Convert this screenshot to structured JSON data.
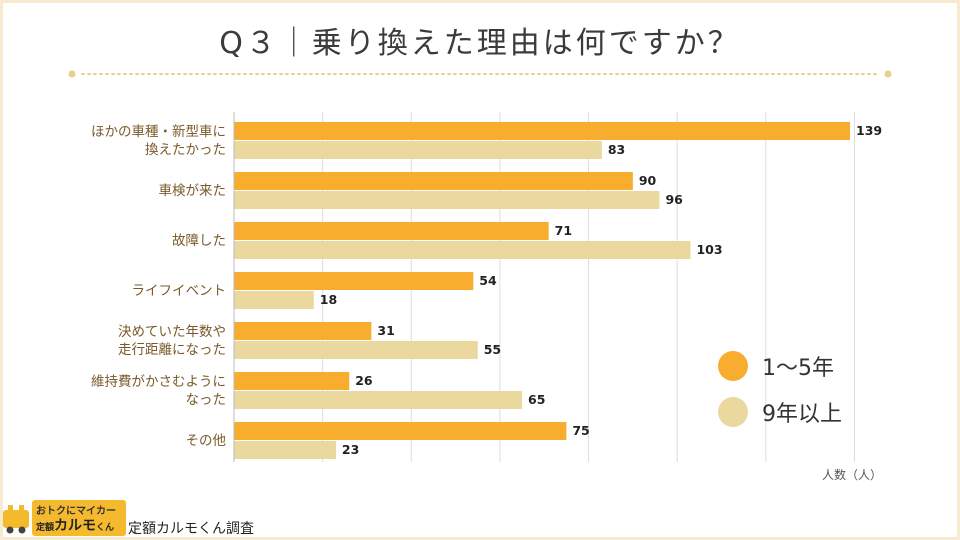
{
  "title": "Q３｜乗り換えた理由は何ですか？",
  "unit_label": "人数（人）",
  "legend": [
    {
      "label": "1～5年",
      "color": "#f9ad2e"
    },
    {
      "label": "9年以上",
      "color": "#ead89e"
    }
  ],
  "source": "定額カルモくん調査",
  "logo": {
    "top": "おトクにマイカー",
    "prefix": "定額",
    "main": "カルモ",
    "suffix": "くん"
  },
  "colors": {
    "series1": "#f9ad2e",
    "series2": "#ead89e",
    "label": "#7a5a2a",
    "grid": "#dddddd"
  },
  "chart_data": {
    "type": "bar",
    "orientation": "horizontal",
    "title": "Q３｜乗り換えた理由は何ですか？",
    "xlabel": "人数（人）",
    "ylabel": "",
    "xlim": [
      0,
      140
    ],
    "grid": true,
    "categories": [
      [
        "ほかの車種・新型車に",
        "換えたかった"
      ],
      [
        "車検が来た"
      ],
      [
        "故障した"
      ],
      [
        "ライフイベント"
      ],
      [
        "決めていた年数や",
        "走行距離になった"
      ],
      [
        "維持費がかさむように",
        "なった"
      ],
      [
        "その他"
      ]
    ],
    "series": [
      {
        "name": "1～5年",
        "values": [
          139,
          90,
          71,
          54,
          31,
          26,
          75
        ]
      },
      {
        "name": "9年以上",
        "values": [
          83,
          96,
          103,
          18,
          55,
          65,
          23
        ]
      }
    ]
  }
}
